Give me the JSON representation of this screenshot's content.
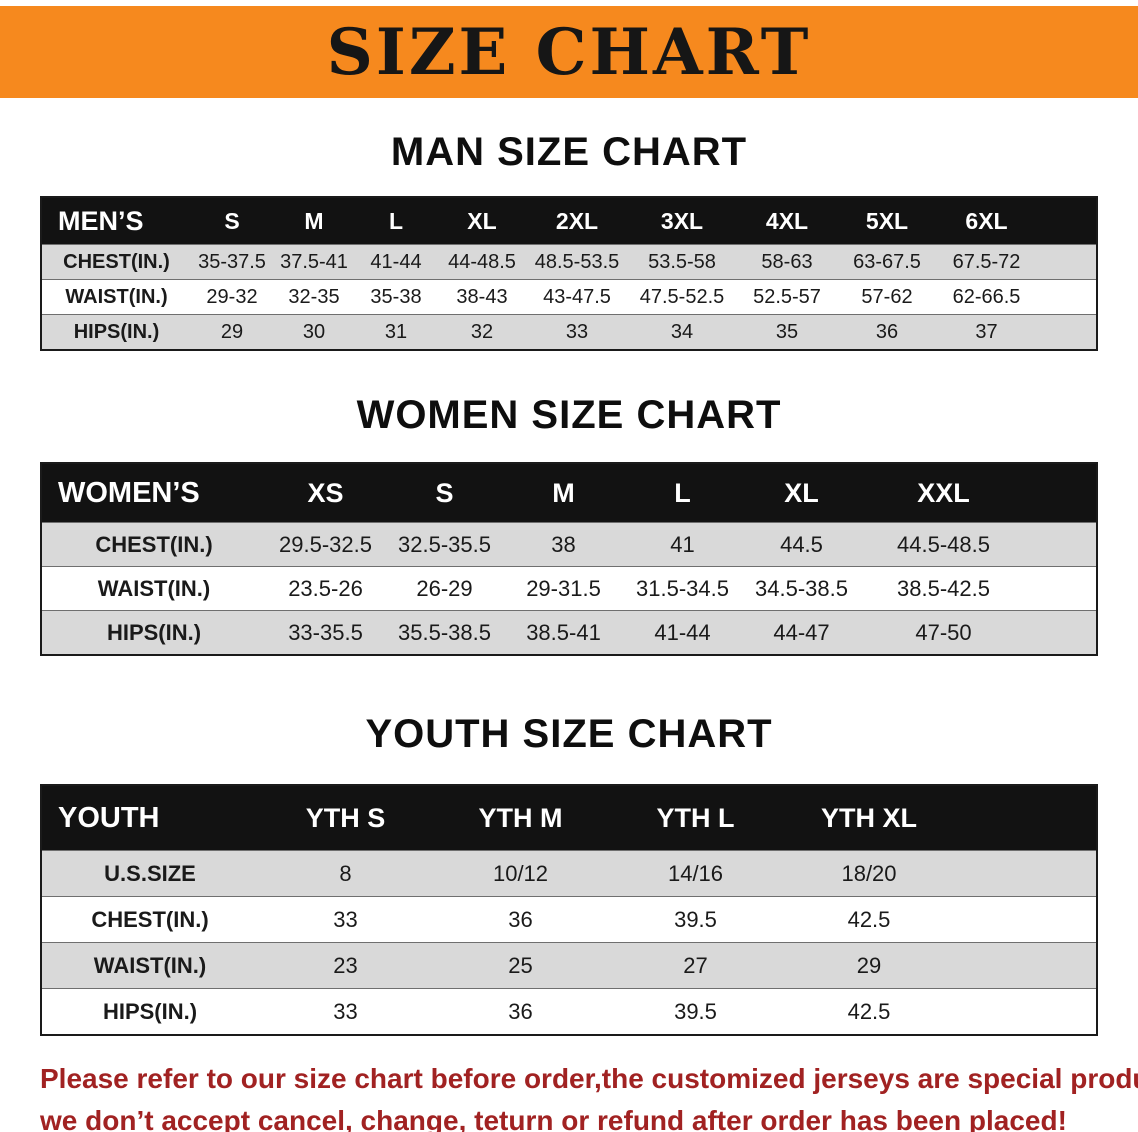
{
  "banner": {
    "title": "SIZE CHART"
  },
  "colors": {
    "banner_bg": "#f6891e",
    "table_header_bg": "#121212",
    "stripe_row_bg": "#d9d9d9",
    "footer_text": "#a12222"
  },
  "sections": {
    "men": {
      "title": "MAN SIZE CHART",
      "table": {
        "header": [
          "MEN’S",
          "S",
          "M",
          "L",
          "XL",
          "2XL",
          "3XL",
          "4XL",
          "5XL",
          "6XL"
        ],
        "rows": [
          {
            "label": "CHEST(IN.)",
            "values": [
              "35-37.5",
              "37.5-41",
              "41-44",
              "44-48.5",
              "48.5-53.5",
              "53.5-58",
              "58-63",
              "63-67.5",
              "67.5-72"
            ]
          },
          {
            "label": "WAIST(IN.)",
            "values": [
              "29-32",
              "32-35",
              "35-38",
              "38-43",
              "43-47.5",
              "47.5-52.5",
              "52.5-57",
              "57-62",
              "62-66.5"
            ]
          },
          {
            "label": "HIPS(IN.)",
            "values": [
              "29",
              "30",
              "31",
              "32",
              "33",
              "34",
              "35",
              "36",
              "37"
            ]
          }
        ]
      }
    },
    "women": {
      "title": "WOMEN SIZE CHART",
      "table": {
        "header": [
          "WOMEN’S",
          "XS",
          "S",
          "M",
          "L",
          "XL",
          "XXL"
        ],
        "rows": [
          {
            "label": "CHEST(IN.)",
            "values": [
              "29.5-32.5",
              "32.5-35.5",
              "38",
              "41",
              "44.5",
              "44.5-48.5"
            ]
          },
          {
            "label": "WAIST(IN.)",
            "values": [
              "23.5-26",
              "26-29",
              "29-31.5",
              "31.5-34.5",
              "34.5-38.5",
              "38.5-42.5"
            ]
          },
          {
            "label": "HIPS(IN.)",
            "values": [
              "33-35.5",
              "35.5-38.5",
              "38.5-41",
              "41-44",
              "44-47",
              "47-50"
            ]
          }
        ]
      }
    },
    "youth": {
      "title": "YOUTH SIZE CHART",
      "table": {
        "header": [
          "YOUTH",
          "YTH S",
          "YTH M",
          "YTH L",
          "YTH XL"
        ],
        "rows": [
          {
            "label": "U.S.SIZE",
            "values": [
              "8",
              "10/12",
              "14/16",
              "18/20"
            ]
          },
          {
            "label": "CHEST(IN.)",
            "values": [
              "33",
              "36",
              "39.5",
              "42.5"
            ]
          },
          {
            "label": "WAIST(IN.)",
            "values": [
              "23",
              "25",
              "27",
              "29"
            ]
          },
          {
            "label": "HIPS(IN.)",
            "values": [
              "33",
              "36",
              "39.5",
              "42.5"
            ]
          }
        ]
      }
    }
  },
  "footer": {
    "lines": [
      "Please refer to our size chart before order,the customized jerseys are special products,",
      "we don’t accept cancel, change, teturn or refund after order has been placed!"
    ]
  }
}
